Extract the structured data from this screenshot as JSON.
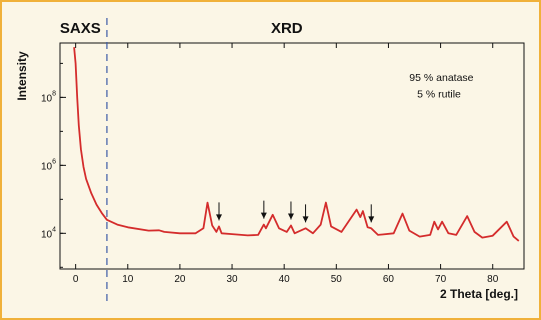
{
  "chart_data": {
    "type": "line",
    "xlabel": "2 Theta [deg.]",
    "ylabel": "Intensity",
    "y_scale": "log",
    "xlim": [
      -3,
      86
    ],
    "ylim_log10": [
      2.95,
      9.6
    ],
    "x_ticks": [
      0,
      10,
      20,
      30,
      40,
      50,
      60,
      70,
      80
    ],
    "y_ticks": [
      {
        "base": "10",
        "exp": "4",
        "value": 10000
      },
      {
        "base": "10",
        "exp": "6",
        "value": 1000000
      },
      {
        "base": "10",
        "exp": "8",
        "value": 100000000
      }
    ],
    "regions": [
      {
        "label": "SAXS",
        "x_center": 0.9
      },
      {
        "label": "XRD",
        "x_center": 40.5
      }
    ],
    "boundary_x": 6,
    "annotations": [
      {
        "text": "95 % anatase",
        "x": 64,
        "y": 300000000
      },
      {
        "text": "5 % rutile",
        "x": 65.5,
        "y": 100000000
      }
    ],
    "arrow_markers_x": [
      27.5,
      36.1,
      41.3,
      44.1,
      56.7
    ],
    "series_color": "#d42c2c",
    "series": [
      {
        "values": [
          [
            -0.3,
            3000000000
          ],
          [
            0,
            1000000000
          ],
          [
            0.3,
            100000000
          ],
          [
            0.6,
            15000000
          ],
          [
            1,
            3000000
          ],
          [
            1.5,
            900000
          ],
          [
            2,
            400000
          ],
          [
            3,
            150000
          ],
          [
            4,
            70000
          ],
          [
            5,
            40000
          ],
          [
            6,
            25000
          ],
          [
            8,
            18000
          ],
          [
            10,
            15000
          ],
          [
            14,
            12000
          ],
          [
            16,
            12300
          ],
          [
            17,
            11000
          ],
          [
            20,
            10000
          ],
          [
            23,
            10000
          ],
          [
            24.5,
            14000
          ],
          [
            25.3,
            80000
          ],
          [
            26.2,
            17000
          ],
          [
            27,
            11000
          ],
          [
            27.5,
            16000
          ],
          [
            28,
            10000
          ],
          [
            30,
            9500
          ],
          [
            33,
            8700
          ],
          [
            35,
            9000
          ],
          [
            36.1,
            18000
          ],
          [
            36.5,
            14000
          ],
          [
            37.8,
            35000
          ],
          [
            39,
            14000
          ],
          [
            40.5,
            11000
          ],
          [
            41.3,
            17000
          ],
          [
            42,
            10000
          ],
          [
            44.1,
            14000
          ],
          [
            45.5,
            10000
          ],
          [
            47,
            18000
          ],
          [
            48,
            80000
          ],
          [
            49,
            16000
          ],
          [
            51,
            11000
          ],
          [
            53.9,
            50000
          ],
          [
            54.6,
            30000
          ],
          [
            55.1,
            45000
          ],
          [
            56,
            15000
          ],
          [
            56.7,
            14000
          ],
          [
            58,
            9000
          ],
          [
            61,
            10000
          ],
          [
            62.7,
            38000
          ],
          [
            64,
            12000
          ],
          [
            66,
            8000
          ],
          [
            68,
            9000
          ],
          [
            68.8,
            22000
          ],
          [
            69.5,
            13000
          ],
          [
            70.3,
            22000
          ],
          [
            71.5,
            10000
          ],
          [
            73,
            9000
          ],
          [
            75.1,
            32000
          ],
          [
            76.5,
            11000
          ],
          [
            78,
            7500
          ],
          [
            80,
            8500
          ],
          [
            82.7,
            22000
          ],
          [
            84,
            8000
          ],
          [
            85,
            6000
          ]
        ]
      }
    ]
  }
}
